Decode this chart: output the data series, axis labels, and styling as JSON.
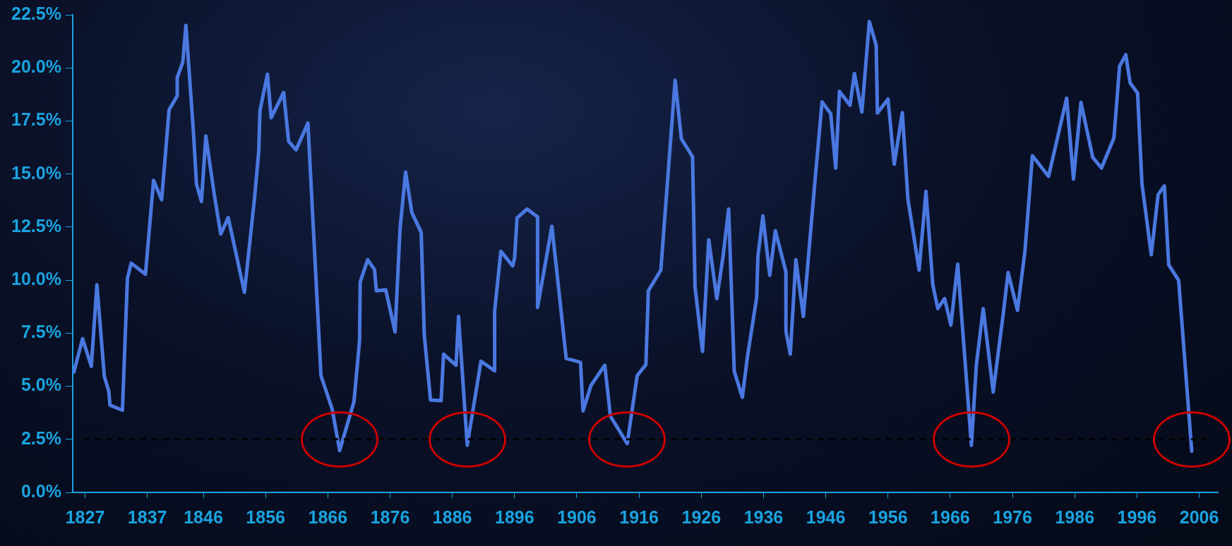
{
  "chart_data": {
    "type": "line",
    "x": [
      1825.2,
      1826.6,
      1828.0,
      1828.9,
      1830.1,
      1830.8,
      1831.0,
      1833.0,
      1833.8,
      1834.4,
      1836.7,
      1838.0,
      1839.3,
      1840.5,
      1841.8,
      1841.8,
      1842.7,
      1843.2,
      1844.4,
      1844.9,
      1845.7,
      1846.4,
      1847.8,
      1848.8,
      1850.0,
      1852.6,
      1854.2,
      1854.9,
      1855.1,
      1856.3,
      1856.9,
      1858.9,
      1859.7,
      1860.9,
      1862.8,
      1864.9,
      1866.7,
      1867.9,
      1870.2,
      1871.1,
      1871.2,
      1872.4,
      1873.5,
      1873.8,
      1875.3,
      1876.8,
      1877.6,
      1878.5,
      1879.5,
      1881.0,
      1881.5,
      1882.5,
      1884.2,
      1884.6,
      1886.6,
      1887.0,
      1888.4,
      1890.6,
      1892.8,
      1892.8,
      1893.8,
      1895.7,
      1896.0,
      1896.4,
      1898.0,
      1899.7,
      1899.7,
      1902.0,
      1904.3,
      1906.6,
      1907.0,
      1908.3,
      1910.5,
      1911.4,
      1914.1,
      1915.7,
      1917.1,
      1917.5,
      1919.5,
      1921.8,
      1922.8,
      1924.6,
      1925.0,
      1926.2,
      1927.2,
      1928.5,
      1929.5,
      1930.4,
      1931.3,
      1932.6,
      1933.4,
      1934.9,
      1935.1,
      1935.9,
      1937.0,
      1937.9,
      1939.6,
      1939.6,
      1940.3,
      1941.2,
      1942.4,
      1944.1,
      1945.4,
      1946.8,
      1947.6,
      1948.2,
      1949.9,
      1950.6,
      1951.8,
      1953.0,
      1954.1,
      1954.3,
      1956.0,
      1957.0,
      1958.3,
      1959.2,
      1961.0,
      1962.1,
      1963.2,
      1964.0,
      1965.1,
      1966.1,
      1967.2,
      1969.4,
      1970.2,
      1971.3,
      1972.9,
      1974.5,
      1975.3,
      1976.8,
      1978.0,
      1979.2,
      1981.8,
      1984.7,
      1985.8,
      1987.0,
      1988.9,
      1990.3,
      1992.3,
      1993.2,
      1994.2,
      1994.9,
      1996.1,
      1996.8,
      1998.3,
      1999.4,
      2000.4,
      2001.1,
      2002.7,
      2004.8
    ],
    "series": [
      {
        "color": "#4a78e0",
        "values": [
          5.67,
          7.24,
          5.94,
          9.78,
          5.45,
          4.78,
          4.11,
          3.87,
          10.07,
          10.8,
          10.28,
          14.7,
          13.79,
          18.03,
          18.68,
          19.54,
          20.27,
          22.0,
          17.0,
          14.52,
          13.71,
          16.79,
          13.95,
          12.17,
          12.95,
          9.42,
          13.79,
          16.06,
          18.0,
          19.7,
          17.65,
          18.84,
          16.54,
          16.14,
          17.4,
          5.5,
          3.92,
          1.97,
          4.27,
          7.15,
          9.91,
          10.96,
          10.5,
          9.5,
          9.55,
          7.56,
          12.41,
          15.09,
          13.18,
          12.25,
          7.4,
          4.35,
          4.32,
          6.51,
          5.99,
          8.29,
          2.22,
          6.18,
          5.73,
          8.53,
          11.36,
          10.67,
          11.01,
          12.93,
          13.35,
          12.98,
          8.72,
          12.54,
          6.31,
          6.13,
          3.84,
          5.05,
          5.99,
          3.59,
          2.3,
          5.5,
          6.02,
          9.5,
          10.47,
          19.42,
          16.66,
          15.81,
          9.66,
          6.64,
          11.9,
          9.13,
          11.12,
          13.35,
          5.7,
          4.48,
          6.35,
          9.18,
          11.12,
          13.03,
          10.23,
          12.33,
          10.39,
          7.59,
          6.51,
          10.96,
          8.29,
          14.11,
          18.4,
          17.84,
          15.28,
          18.89,
          18.24,
          19.73,
          17.92,
          22.18,
          21.07,
          17.87,
          18.53,
          15.46,
          17.89,
          13.82,
          10.47,
          14.18,
          9.78,
          8.66,
          9.13,
          7.88,
          10.75,
          2.22,
          6.02,
          8.66,
          4.73,
          8.37,
          10.36,
          8.58,
          11.36,
          15.86,
          14.89,
          18.57,
          14.76,
          18.37,
          15.78,
          15.28,
          16.7,
          20.07,
          20.62,
          19.29,
          18.81,
          14.55,
          11.2,
          14.03,
          14.44,
          10.72,
          9.99,
          1.94
        ]
      }
    ],
    "xlim": [
      1825,
      2009
    ],
    "xticks": [
      1827,
      1837,
      1846,
      1856,
      1866,
      1876,
      1886,
      1896,
      1906,
      1916,
      1926,
      1936,
      1946,
      1956,
      1966,
      1976,
      1986,
      1996,
      2006
    ],
    "ylim": [
      0,
      22.5
    ],
    "yticks": [
      {
        "value": 0,
        "label": "0.0%"
      },
      {
        "value": 2.5,
        "label": "2.5%"
      },
      {
        "value": 5,
        "label": "5.0%"
      },
      {
        "value": 7.5,
        "label": "7.5%"
      },
      {
        "value": 10,
        "label": "10.0%"
      },
      {
        "value": 12.5,
        "label": "12.5%"
      },
      {
        "value": 15,
        "label": "15.0%"
      },
      {
        "value": 17.5,
        "label": "17.5%"
      },
      {
        "value": 20,
        "label": "20.0%"
      },
      {
        "value": 22.5,
        "label": "22.5%"
      }
    ],
    "ref_lines": [
      {
        "axis": "y",
        "value": 2.5,
        "color": "#000000",
        "line_style": "dashed"
      }
    ],
    "marker": "none",
    "line_style": "solid",
    "legend": false
  }
}
